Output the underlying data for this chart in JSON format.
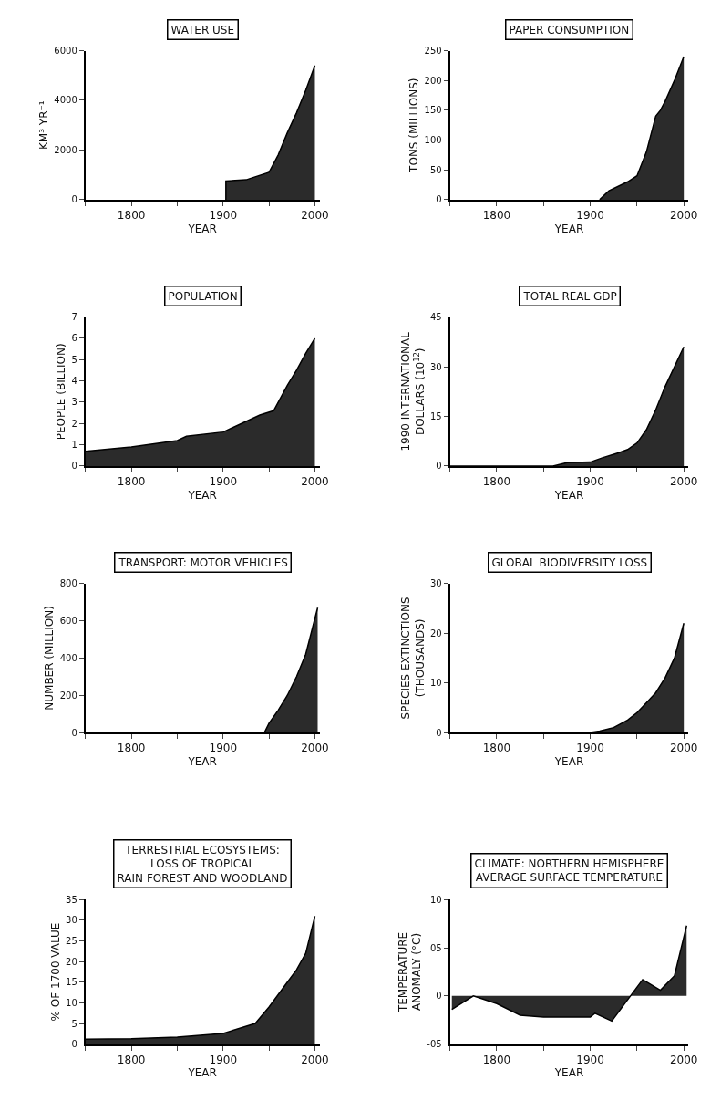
{
  "chart_data": [
    {
      "type": "area",
      "title": "WATER USE",
      "xlabel": "YEAR",
      "ylabel": "KM³ YR⁻¹",
      "color": "#2b2b2b",
      "x": [
        1903,
        1903,
        1925,
        1950,
        1960,
        1970,
        1980,
        1990,
        2000
      ],
      "values": [
        0,
        750,
        800,
        1100,
        1800,
        2700,
        3500,
        4400,
        5400
      ],
      "xlim": [
        1750,
        2005
      ],
      "xticks": [
        {
          "value": 1750,
          "label": null
        },
        1800,
        {
          "value": 1850,
          "label": null
        },
        1900,
        {
          "value": 1950,
          "label": null
        },
        2000
      ],
      "ylim": [
        0,
        6000
      ],
      "yticks": [
        0,
        2000,
        4000,
        6000
      ]
    },
    {
      "type": "area",
      "title": "PAPER CONSUMPTION",
      "xlabel": "YEAR",
      "ylabel": "TONS (MILLIONS)",
      "color": "#2b2b2b",
      "x": [
        1910,
        1920,
        1940,
        1950,
        1960,
        1970,
        1975,
        1980,
        1990,
        2000
      ],
      "values": [
        0,
        15,
        30,
        40,
        80,
        140,
        150,
        165,
        200,
        240
      ],
      "xlim": [
        1750,
        2005
      ],
      "xticks": [
        {
          "value": 1750,
          "label": null
        },
        1800,
        {
          "value": 1850,
          "label": null
        },
        1900,
        {
          "value": 1950,
          "label": null
        },
        2000
      ],
      "ylim": [
        0,
        250
      ],
      "yticks": [
        0,
        50,
        100,
        150,
        200,
        250
      ]
    },
    {
      "type": "area",
      "title": "POPULATION",
      "xlabel": "YEAR",
      "ylabel": "PEOPLE (BILLION)",
      "color": "#2b2b2b",
      "x": [
        1750,
        1800,
        1850,
        1860,
        1900,
        1925,
        1940,
        1955,
        1970,
        1980,
        1990,
        2000
      ],
      "values": [
        0.7,
        0.9,
        1.2,
        1.4,
        1.6,
        2.1,
        2.4,
        2.6,
        3.8,
        4.5,
        5.3,
        6.0
      ],
      "xlim": [
        1750,
        2005
      ],
      "xticks": [
        {
          "value": 1750,
          "label": null
        },
        1800,
        {
          "value": 1850,
          "label": null
        },
        1900,
        {
          "value": 1950,
          "label": null
        },
        2000
      ],
      "ylim": [
        0,
        7
      ],
      "yticks": [
        0,
        1,
        2,
        3,
        4,
        5,
        6,
        7
      ]
    },
    {
      "type": "area",
      "title": "TOTAL REAL GDP",
      "xlabel": "YEAR",
      "ylabel": "1990 INTERNATIONAL\nDOLLARS (10$^{12}$)",
      "color": "#2b2b2b",
      "x": [
        1750,
        1860,
        1875,
        1900,
        1913,
        1930,
        1940,
        1950,
        1960,
        1970,
        1980,
        1990,
        2000
      ],
      "values": [
        0,
        0,
        1,
        1.2,
        2.5,
        4,
        5,
        7,
        11,
        17,
        24,
        30,
        36
      ],
      "xlim": [
        1750,
        2005
      ],
      "xticks": [
        {
          "value": 1750,
          "label": null
        },
        1800,
        {
          "value": 1850,
          "label": null
        },
        1900,
        {
          "value": 1950,
          "label": null
        },
        2000
      ],
      "ylim": [
        0,
        45
      ],
      "yticks": [
        0,
        15,
        30,
        45
      ]
    },
    {
      "type": "area",
      "title": "TRANSPORT: MOTOR VEHICLES",
      "xlabel": "YEAR",
      "ylabel": "NUMBER (MILLION)",
      "color": "#2b2b2b",
      "x": [
        1750,
        1945,
        1950,
        1960,
        1970,
        1980,
        1990,
        2003
      ],
      "values": [
        0,
        0,
        50,
        120,
        200,
        300,
        420,
        670
      ],
      "xlim": [
        1750,
        2005
      ],
      "xticks": [
        {
          "value": 1750,
          "label": null
        },
        1800,
        {
          "value": 1850,
          "label": null
        },
        1900,
        {
          "value": 1950,
          "label": null
        },
        2000
      ],
      "ylim": [
        0,
        800
      ],
      "yticks": [
        0,
        200,
        400,
        600,
        800
      ]
    },
    {
      "type": "area",
      "title": "GLOBAL BIODIVERSITY LOSS",
      "xlabel": "YEAR",
      "ylabel": "SPECIES EXTINCTIONS\n(THOUSANDS)",
      "color": "#2b2b2b",
      "x": [
        1750,
        1900,
        1910,
        1925,
        1940,
        1950,
        1960,
        1970,
        1980,
        1990,
        2000
      ],
      "values": [
        0,
        0,
        0.3,
        1,
        2.5,
        4,
        6,
        8,
        11,
        15,
        22
      ],
      "xlim": [
        1750,
        2005
      ],
      "xticks": [
        {
          "value": 1750,
          "label": null
        },
        1800,
        {
          "value": 1850,
          "label": null
        },
        1900,
        {
          "value": 1950,
          "label": null
        },
        2000
      ],
      "ylim": [
        0,
        30
      ],
      "yticks": [
        0,
        10,
        20,
        30
      ]
    },
    {
      "type": "area",
      "title": "TERRESTRIAL ECOSYSTEMS:\nLOSS OF TROPICAL\nRAIN FOREST AND WOODLAND",
      "xlabel": "YEAR",
      "ylabel": "% OF 1700 VALUE",
      "color": "#2b2b2b",
      "x": [
        1750,
        1800,
        1850,
        1900,
        1935,
        1950,
        1970,
        1980,
        1990,
        2000
      ],
      "values": [
        1.2,
        1.3,
        1.7,
        2.6,
        5,
        9,
        15,
        18,
        22,
        31
      ],
      "xlim": [
        1750,
        2005
      ],
      "xticks": [
        {
          "value": 1750,
          "label": null
        },
        1800,
        {
          "value": 1850,
          "label": null
        },
        1900,
        {
          "value": 1950,
          "label": null
        },
        2000
      ],
      "ylim": [
        0,
        35
      ],
      "yticks": [
        0,
        5,
        10,
        15,
        20,
        25,
        30,
        35
      ]
    },
    {
      "type": "area",
      "title": "CLIMATE: NORTHERN HEMISPHERE\nAVERAGE SURFACE TEMPERATURE",
      "xlabel": "YEAR",
      "ylabel": "TEMPERATURE\nANOMALY (°C)",
      "color": "#2b2b2b",
      "x": [
        1752,
        1775,
        1800,
        1825,
        1850,
        1900,
        1905,
        1923,
        1956,
        1975,
        1990,
        2003
      ],
      "values": [
        -1.4,
        0.0,
        -0.8,
        -2.0,
        -2.2,
        -2.2,
        -1.8,
        -2.6,
        1.7,
        0.6,
        2.1,
        7.3
      ],
      "xlim": [
        1750,
        2005
      ],
      "xticks": [
        {
          "value": 1750,
          "label": null
        },
        1800,
        {
          "value": 1850,
          "label": null
        },
        1900,
        {
          "value": 1950,
          "label": null
        },
        2000
      ],
      "ylim": [
        -5,
        10
      ],
      "yticks": [
        {
          "value": -5,
          "label": "-05"
        },
        0,
        {
          "value": 5,
          "label": "05"
        },
        10
      ]
    }
  ]
}
